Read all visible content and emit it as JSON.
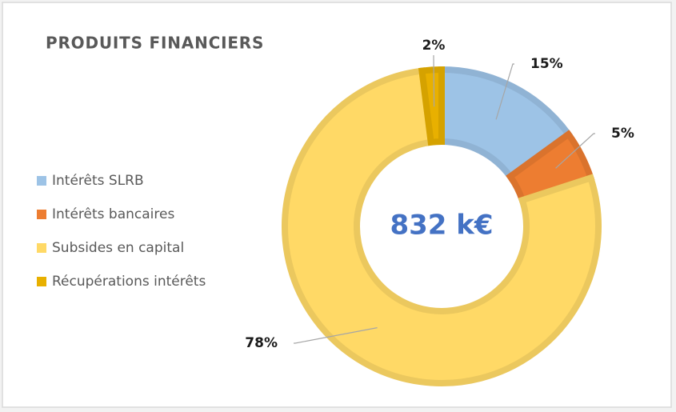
{
  "chart_data": {
    "type": "donut",
    "title": "PRODUITS FINANCIERS",
    "center_label": "832 k€",
    "categories": [
      "Intérêts SLRB",
      "Intérêts bancaires",
      "Subsides en capital",
      "Récupérations intérêts"
    ],
    "values": [
      15,
      5,
      78,
      2
    ],
    "value_labels": [
      "15%",
      "5%",
      "78%",
      "2%"
    ],
    "colors": [
      "#9dc3e6",
      "#ed7d31",
      "#ffd966",
      "#e8b000"
    ],
    "legend": "left"
  }
}
